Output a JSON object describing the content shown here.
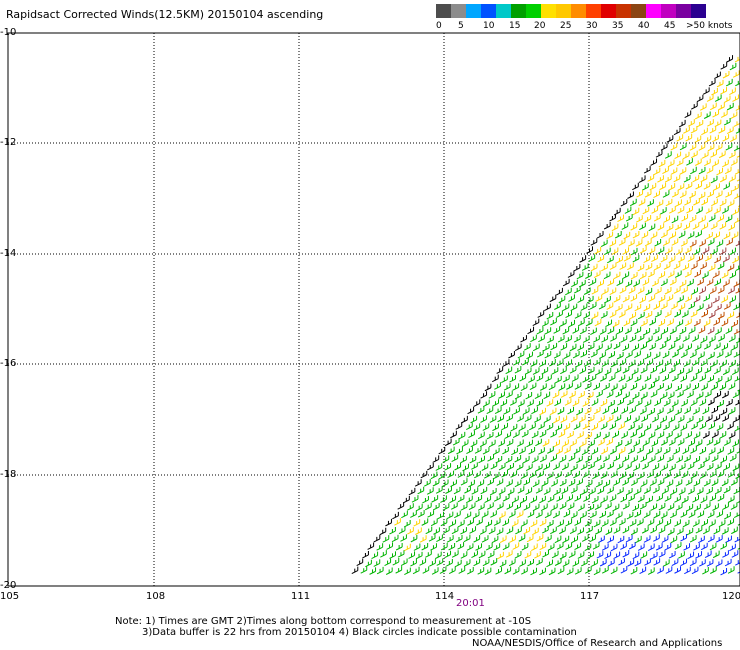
{
  "title": "Rapidsact Corrected Winds(12.5KM) 20150104 ascending",
  "legend": {
    "colors": [
      "#4d4d4d",
      "#8c8c8c",
      "#00a6ff",
      "#0052ff",
      "#00c8c8",
      "#00a000",
      "#00d000",
      "#ffe000",
      "#ffc800",
      "#ff8c00",
      "#ff4000",
      "#e00000",
      "#c83200",
      "#8b4513",
      "#ff00ff",
      "#c000c0",
      "#7a00a0",
      "#2b0090"
    ],
    "labels": [
      "0",
      "5",
      "10",
      "15",
      "20",
      "25",
      "30",
      "35",
      "40",
      "45",
      ">50 knots"
    ]
  },
  "map": {
    "lat_labels": [
      "-10",
      "-12",
      "-14",
      "-16",
      "-18",
      "-20"
    ],
    "lon_labels": [
      "105",
      "108",
      "111",
      "114",
      "117",
      "120"
    ]
  },
  "time_label": "20:01",
  "notes": {
    "line1": "Note: 1) Times are GMT 2)Times along bottom correspond to measurement at -10S",
    "line2": "3)Data buffer is 22 hrs from 20150104 4) Black circles indicate possible contamination",
    "line3": "NOAA/NESDIS/Office of Research and Applications"
  }
}
